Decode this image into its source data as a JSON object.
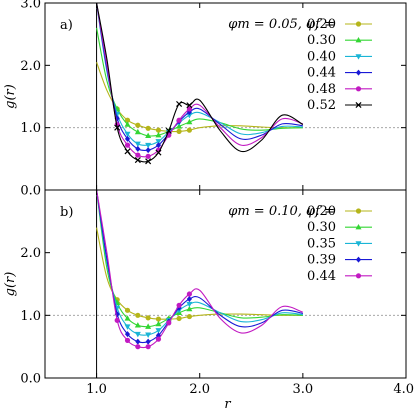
{
  "chart_data": [
    {
      "type": "line",
      "panel_label": "a)",
      "legend_header": "φm = 0.05, φf =",
      "xlabel": "",
      "ylabel": "g(r)",
      "xlim": [
        0.5,
        4.0
      ],
      "ylim": [
        0.0,
        3.0
      ],
      "xticks": [],
      "yticks": [
        "0.0",
        "1.0",
        "2.0",
        "3.0"
      ],
      "reference_line_y": 1.0,
      "series": [
        {
          "name": "0.20",
          "color": "#b5b51a",
          "marker": "circle",
          "x": [
            1.0,
            1.1,
            1.2,
            1.3,
            1.4,
            1.5,
            1.6,
            1.7,
            1.8,
            1.9,
            2.0,
            2.2,
            2.4,
            2.6,
            2.8,
            3.0
          ],
          "y": [
            2.05,
            1.6,
            1.3,
            1.12,
            1.04,
            0.99,
            0.96,
            0.94,
            0.94,
            0.96,
            1.0,
            1.03,
            1.03,
            1.01,
            1.0,
            1.0
          ]
        },
        {
          "name": "0.30",
          "color": "#33d633",
          "marker": "triangle-up",
          "x": [
            1.0,
            1.1,
            1.2,
            1.3,
            1.4,
            1.5,
            1.6,
            1.7,
            1.8,
            1.9,
            2.0,
            2.2,
            2.4,
            2.6,
            2.8,
            3.0
          ],
          "y": [
            2.6,
            1.75,
            1.3,
            1.05,
            0.93,
            0.87,
            0.88,
            0.94,
            1.02,
            1.09,
            1.14,
            1.08,
            0.98,
            0.96,
            0.99,
            1.0
          ]
        },
        {
          "name": "0.40",
          "color": "#1ab5d6",
          "marker": "triangle-down",
          "x": [
            1.0,
            1.1,
            1.2,
            1.3,
            1.4,
            1.5,
            1.6,
            1.7,
            1.8,
            1.9,
            2.0,
            2.2,
            2.4,
            2.6,
            2.8,
            3.0
          ],
          "y": [
            3.0,
            1.9,
            1.22,
            0.9,
            0.74,
            0.72,
            0.78,
            0.93,
            1.08,
            1.2,
            1.24,
            1.08,
            0.9,
            0.92,
            1.02,
            1.01
          ]
        },
        {
          "name": "0.44",
          "color": "#1a1ad6",
          "marker": "diamond",
          "x": [
            1.0,
            1.1,
            1.2,
            1.3,
            1.4,
            1.5,
            1.6,
            1.7,
            1.8,
            1.9,
            2.0,
            2.2,
            2.4,
            2.6,
            2.8,
            3.0
          ],
          "y": [
            3.0,
            1.95,
            1.15,
            0.82,
            0.66,
            0.64,
            0.72,
            0.9,
            1.1,
            1.25,
            1.3,
            1.05,
            0.82,
            0.88,
            1.06,
            1.03
          ]
        },
        {
          "name": "0.48",
          "color": "#c21ac2",
          "marker": "circle",
          "x": [
            1.0,
            1.1,
            1.2,
            1.3,
            1.4,
            1.5,
            1.6,
            1.7,
            1.8,
            1.9,
            2.0,
            2.2,
            2.4,
            2.6,
            2.8,
            3.0
          ],
          "y": [
            3.0,
            2.0,
            1.05,
            0.72,
            0.56,
            0.54,
            0.64,
            0.88,
            1.12,
            1.3,
            1.36,
            1.0,
            0.72,
            0.84,
            1.14,
            1.06
          ]
        },
        {
          "name": "0.52",
          "color": "#000000",
          "marker": "cross",
          "x": [
            1.0,
            1.1,
            1.2,
            1.3,
            1.4,
            1.5,
            1.6,
            1.7,
            1.8,
            1.9,
            2.0,
            2.2,
            2.4,
            2.6,
            2.8,
            3.0
          ],
          "y": [
            3.0,
            2.1,
            1.0,
            0.62,
            0.48,
            0.46,
            0.6,
            0.95,
            1.38,
            1.36,
            1.44,
            0.95,
            0.62,
            0.8,
            1.2,
            1.05
          ]
        }
      ]
    },
    {
      "type": "line",
      "panel_label": "b)",
      "legend_header": "φm = 0.10, φf =",
      "xlabel": "r",
      "ylabel": "g(r)",
      "xlim": [
        0.5,
        4.0
      ],
      "ylim": [
        0.0,
        3.0
      ],
      "xticks": [
        "1.0",
        "2.0",
        "3.0",
        "4.0"
      ],
      "yticks": [
        "0.0",
        "1.0",
        "2.0"
      ],
      "reference_line_y": 1.0,
      "series": [
        {
          "name": "0.20",
          "color": "#b5b51a",
          "marker": "circle",
          "x": [
            1.0,
            1.1,
            1.2,
            1.3,
            1.4,
            1.5,
            1.6,
            1.7,
            1.8,
            1.9,
            2.0,
            2.2,
            2.4,
            2.6,
            2.8,
            3.0
          ],
          "y": [
            2.4,
            1.6,
            1.25,
            1.08,
            1.0,
            0.96,
            0.94,
            0.94,
            0.95,
            0.98,
            1.0,
            1.02,
            1.02,
            1.01,
            1.0,
            1.0
          ]
        },
        {
          "name": "0.30",
          "color": "#33d633",
          "marker": "triangle-up",
          "x": [
            1.0,
            1.1,
            1.2,
            1.3,
            1.4,
            1.5,
            1.6,
            1.7,
            1.8,
            1.9,
            2.0,
            2.2,
            2.4,
            2.6,
            2.8,
            3.0
          ],
          "y": [
            3.0,
            1.75,
            1.2,
            0.95,
            0.84,
            0.82,
            0.86,
            0.95,
            1.04,
            1.1,
            1.12,
            1.04,
            0.96,
            0.97,
            1.01,
            1.0
          ]
        },
        {
          "name": "0.35",
          "color": "#1ab5d6",
          "marker": "triangle-down",
          "x": [
            1.0,
            1.1,
            1.2,
            1.3,
            1.4,
            1.5,
            1.6,
            1.7,
            1.8,
            1.9,
            2.0,
            2.2,
            2.4,
            2.6,
            2.8,
            3.0
          ],
          "y": [
            3.0,
            1.85,
            1.12,
            0.82,
            0.7,
            0.69,
            0.76,
            0.92,
            1.08,
            1.18,
            1.2,
            1.04,
            0.9,
            0.93,
            1.04,
            1.01
          ]
        },
        {
          "name": "0.39",
          "color": "#1a1ad6",
          "marker": "diamond",
          "x": [
            1.0,
            1.1,
            1.2,
            1.3,
            1.4,
            1.5,
            1.6,
            1.7,
            1.8,
            1.9,
            2.0,
            2.2,
            2.4,
            2.6,
            2.8,
            3.0
          ],
          "y": [
            3.0,
            1.9,
            1.02,
            0.7,
            0.58,
            0.58,
            0.68,
            0.9,
            1.12,
            1.26,
            1.28,
            1.0,
            0.82,
            0.88,
            1.08,
            1.03
          ]
        },
        {
          "name": "0.44",
          "color": "#c21ac2",
          "marker": "circle",
          "x": [
            1.0,
            1.1,
            1.2,
            1.3,
            1.4,
            1.5,
            1.6,
            1.7,
            1.8,
            1.9,
            2.0,
            2.2,
            2.4,
            2.6,
            2.8,
            3.0
          ],
          "y": [
            3.0,
            2.0,
            0.92,
            0.6,
            0.5,
            0.5,
            0.62,
            0.88,
            1.16,
            1.34,
            1.4,
            0.95,
            0.72,
            0.84,
            1.14,
            1.05
          ]
        }
      ]
    }
  ]
}
